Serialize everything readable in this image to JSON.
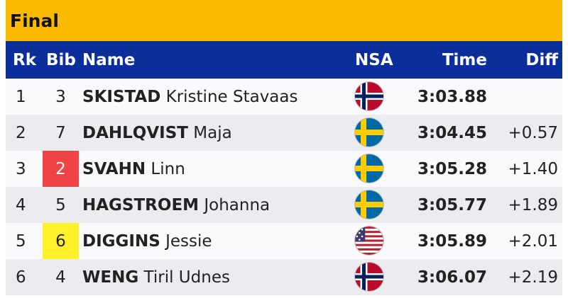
{
  "title": "Final",
  "columns": {
    "rank": "Rk",
    "bib": "Bib",
    "name": "Name",
    "nsa": "NSA",
    "time": "Time",
    "diff": "Diff"
  },
  "colors": {
    "title_bg": "#fbb900",
    "header_bg": "#0a2f9a",
    "red_bib": "#f04343",
    "yellow_bib": "#fff02a"
  },
  "rows": [
    {
      "rank": "1",
      "bib": "3",
      "last": "SKISTAD",
      "first": "Kristine Stavaas",
      "nsa": "norway-flag-icon",
      "time": "3:03.88",
      "diff": ""
    },
    {
      "rank": "2",
      "bib": "7",
      "last": "DAHLQVIST",
      "first": "Maja",
      "nsa": "sweden-flag-icon",
      "time": "3:04.45",
      "diff": "+0.57"
    },
    {
      "rank": "3",
      "bib": "2",
      "last": "SVAHN",
      "first": "Linn",
      "nsa": "sweden-flag-icon",
      "time": "3:05.28",
      "diff": "+1.40"
    },
    {
      "rank": "4",
      "bib": "5",
      "last": "HAGSTROEM",
      "first": "Johanna",
      "nsa": "sweden-flag-icon",
      "time": "3:05.77",
      "diff": "+1.89"
    },
    {
      "rank": "5",
      "bib": "6",
      "last": "DIGGINS",
      "first": "Jessie",
      "nsa": "usa-flag-icon",
      "time": "3:05.89",
      "diff": "+2.01"
    },
    {
      "rank": "6",
      "bib": "4",
      "last": "WENG",
      "first": "Tiril Udnes",
      "nsa": "norway-flag-icon",
      "time": "3:06.07",
      "diff": "+2.19"
    }
  ]
}
